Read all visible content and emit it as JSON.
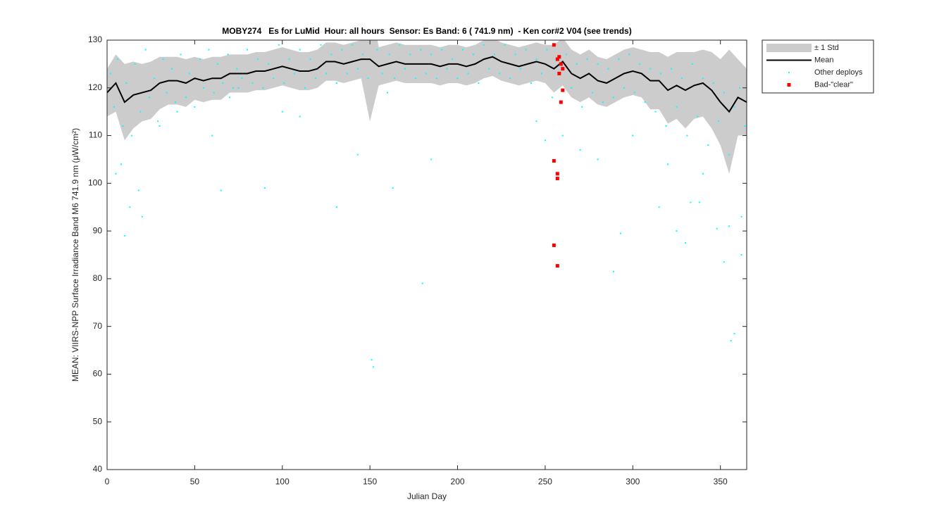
{
  "chart_data": {
    "type": "scatter",
    "title": "MOBY274   Es for LuMid  Hour: all hours  Sensor: Es Band: 6 ( 741.9 nm)  - Ken cor#2 V04 (see trends)",
    "xlabel": "Julian Day",
    "ylabel": "MEAN: VIIRS-NPP Surface Irradiance Band M6 741.9 nm (μW/cm²)",
    "xlim": [
      0,
      365
    ],
    "ylim": [
      40,
      130
    ],
    "xticks": [
      0,
      50,
      100,
      150,
      200,
      250,
      300,
      350
    ],
    "yticks": [
      40,
      50,
      60,
      70,
      80,
      90,
      100,
      110,
      120,
      130
    ],
    "legend": "outside-top-right",
    "x": [
      0,
      5,
      10,
      15,
      20,
      25,
      30,
      35,
      40,
      45,
      50,
      55,
      60,
      65,
      70,
      75,
      80,
      85,
      90,
      95,
      100,
      105,
      110,
      115,
      120,
      125,
      130,
      135,
      140,
      145,
      150,
      155,
      160,
      165,
      170,
      175,
      180,
      185,
      190,
      195,
      200,
      205,
      210,
      215,
      220,
      225,
      230,
      235,
      240,
      245,
      250,
      255,
      260,
      265,
      270,
      275,
      280,
      285,
      290,
      295,
      300,
      305,
      310,
      315,
      320,
      325,
      330,
      335,
      340,
      345,
      350,
      355,
      360,
      365
    ],
    "series": [
      {
        "name": "± 1 Std",
        "kind": "band",
        "color": "#cccccc",
        "values": [
          5,
          6,
          8,
          7,
          6,
          6,
          5.5,
          5,
          5,
          5,
          4.5,
          4.5,
          4.5,
          4.5,
          4,
          4,
          4,
          4,
          4,
          4,
          4,
          4,
          4,
          4,
          4,
          4,
          4,
          4,
          4,
          4,
          13,
          4,
          4,
          4,
          4,
          4,
          4,
          4,
          4,
          4,
          4,
          4,
          4,
          4,
          4,
          4,
          4,
          4,
          4,
          4,
          4,
          5,
          5,
          5,
          5,
          5,
          5,
          5,
          5,
          5,
          5,
          5,
          6,
          6,
          7,
          7,
          8,
          7,
          7,
          8,
          9,
          13,
          8,
          7
        ]
      },
      {
        "name": "Mean",
        "kind": "line",
        "color": "#000000",
        "values": [
          119,
          121,
          117,
          118.5,
          119,
          119.5,
          121,
          121.5,
          121.5,
          121,
          122,
          121.5,
          122,
          122,
          123,
          123,
          123,
          123.5,
          123.5,
          124,
          124.5,
          124,
          123.5,
          123.5,
          124,
          125.5,
          125.5,
          125,
          125.5,
          126,
          126,
          124.5,
          125,
          125.5,
          125,
          125,
          125,
          125,
          124.5,
          125,
          125,
          124.5,
          125,
          126,
          126.5,
          125.5,
          125,
          124.5,
          125,
          125.5,
          125,
          124,
          125.5,
          123,
          122,
          123,
          121.5,
          121,
          122,
          123,
          123.5,
          123,
          121.5,
          121.5,
          119.5,
          120.5,
          119.5,
          120.5,
          121,
          119.5,
          117,
          115,
          118,
          117
        ]
      },
      {
        "name": "Other deploys",
        "kind": "points",
        "color": "#00ffff",
        "x": [
          2,
          4,
          6,
          9,
          11,
          14,
          16,
          19,
          22,
          24,
          27,
          29,
          32,
          34,
          37,
          39,
          42,
          45,
          47,
          50,
          53,
          55,
          58,
          61,
          63,
          66,
          69,
          72,
          74,
          77,
          80,
          83,
          86,
          89,
          92,
          95,
          98,
          101,
          104,
          107,
          110,
          113,
          116,
          119,
          122,
          125,
          128,
          131,
          134,
          137,
          140,
          143,
          146,
          149,
          154,
          157,
          161,
          164,
          167,
          170,
          173,
          176,
          179,
          182,
          185,
          188,
          191,
          194,
          197,
          200,
          203,
          206,
          209,
          212,
          215,
          218,
          221,
          224,
          227,
          230,
          233,
          236,
          239,
          242,
          245,
          248,
          251,
          254,
          262,
          265,
          268,
          271,
          274,
          277,
          280,
          283,
          286,
          289,
          292,
          295,
          298,
          301,
          304,
          307,
          310,
          313,
          316,
          319,
          322,
          325,
          328,
          331,
          334,
          337,
          340,
          343,
          346,
          349,
          352,
          355,
          358,
          361,
          364,
          10,
          13,
          18,
          20,
          5,
          8,
          65,
          90,
          131,
          151,
          152,
          180,
          163,
          143,
          185,
          289,
          293,
          330,
          325,
          348,
          355,
          362,
          356,
          358,
          352,
          362,
          333,
          315,
          338,
          160,
          100,
          110,
          60,
          30,
          40,
          270,
          280,
          300,
          320,
          340,
          250,
          245,
          260,
          70,
          75
        ],
        "y": [
          123,
          116,
          126,
          112,
          121,
          110,
          125,
          115,
          128,
          118,
          122,
          113,
          126,
          119,
          124,
          117,
          127,
          118,
          123,
          116,
          126,
          120,
          128,
          119,
          125,
          121,
          127,
          120,
          124,
          122,
          128,
          121,
          126,
          120,
          125,
          122,
          129,
          121,
          126,
          123,
          128,
          120,
          126,
          122,
          129,
          123,
          127,
          121,
          128,
          123,
          129,
          124,
          127,
          122,
          128,
          123,
          127,
          122,
          129,
          124,
          127,
          122,
          128,
          123,
          127,
          122,
          128,
          124,
          126,
          122,
          128,
          123,
          127,
          121,
          129,
          124,
          127,
          123,
          129,
          122,
          127,
          124,
          128,
          121,
          126,
          123,
          128,
          118,
          127,
          120,
          125,
          116,
          126,
          119,
          125,
          117,
          124,
          118,
          126,
          120,
          127,
          119,
          125,
          117,
          124,
          115,
          123,
          112,
          124,
          116,
          122,
          110,
          125,
          114,
          122,
          108,
          121,
          113,
          119,
          106,
          116,
          120,
          112,
          89,
          95,
          98.5,
          93,
          102,
          104,
          98.5,
          99,
          95,
          63,
          61.5,
          79,
          99,
          106,
          105,
          81.5,
          89.5,
          87.5,
          90,
          90.5,
          91,
          85,
          67,
          68.5,
          83.5,
          93,
          96,
          95,
          96,
          119,
          115,
          114,
          110,
          112,
          115,
          107,
          105,
          110,
          104,
          102,
          109,
          113,
          110,
          118,
          120
        ]
      },
      {
        "name": "Bad-\"clear\"",
        "kind": "points",
        "color": "#ff0000",
        "x": [
          255,
          257,
          258,
          259,
          260,
          258,
          260,
          259,
          255,
          257,
          257,
          255,
          257
        ],
        "y": [
          129,
          126,
          126.5,
          125,
          124,
          123,
          119.5,
          117,
          104.7,
          102,
          101,
          87,
          82.7
        ]
      }
    ]
  }
}
